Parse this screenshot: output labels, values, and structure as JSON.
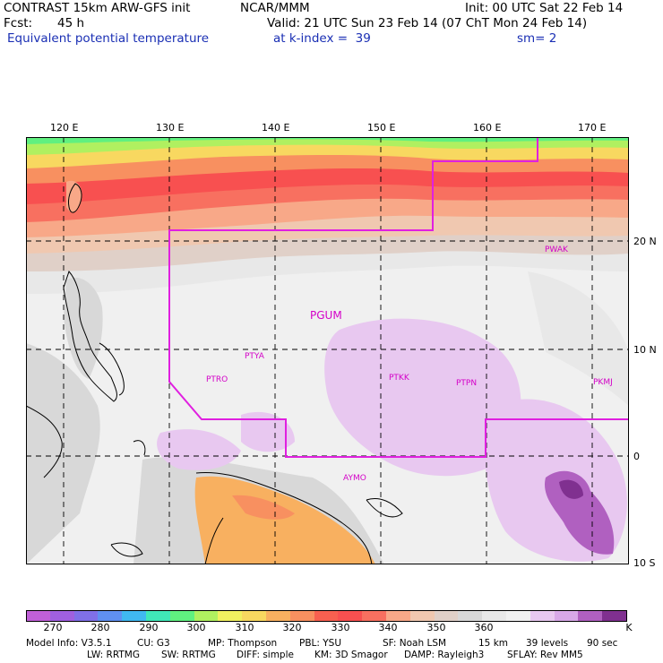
{
  "header": {
    "model": "CONTRAST 15km ARW-GFS init",
    "org": "NCAR/MMM",
    "init": "Init: 00 UTC Sat 22 Feb 14",
    "fcst_label": "Fcst:",
    "fcst_value": "45 h",
    "valid": "Valid: 21 UTC Sun 23 Feb 14 (07 ChT Mon 24 Feb 14)",
    "field": "Equivalent potential temperature",
    "level": "at k-index =  39",
    "smooth": "sm= 2"
  },
  "map": {
    "lon_labels": [
      "120 E",
      "130 E",
      "140 E",
      "150 E",
      "160 E",
      "170 E"
    ],
    "lat_labels": [
      "20 N",
      "10 N",
      "0",
      "10 S"
    ],
    "station_labels": [
      "PWAK",
      "PGUM",
      "PTYA",
      "PTRO",
      "PTKK",
      "PTPN",
      "PKMJ",
      "AYMO"
    ]
  },
  "colorbar": {
    "colors": [
      "#c060d8",
      "#a060e0",
      "#8070e8",
      "#6090f0",
      "#40b8f0",
      "#40e8b8",
      "#60f080",
      "#b0f060",
      "#f0f060",
      "#f8d860",
      "#f8b060",
      "#f89060",
      "#f86050",
      "#f85050",
      "#f87060",
      "#f8a888",
      "#f0c8b0",
      "#e0d0c8",
      "#d8d8d8",
      "#e8e8e8",
      "#f0f0f0",
      "#e8c8f0",
      "#d8a8e8",
      "#b060c0",
      "#803090"
    ],
    "labels": [
      "270",
      "280",
      "290",
      "300",
      "310",
      "320",
      "330",
      "340",
      "350",
      "360"
    ],
    "unit": "K"
  },
  "model_info": {
    "line1": [
      "Model Info: V3.5.1",
      "CU: G3",
      "MP: Thompson",
      "PBL: YSU",
      "SF: Noah LSM",
      "15 km",
      "39 levels",
      "90 sec"
    ],
    "line2": [
      "LW: RRTMG",
      "SW: RRTMG",
      "DIFF: simple",
      "KM: 3D Smagor",
      "DAMP: Rayleigh3",
      "SFLAY: Rev MM5"
    ]
  }
}
